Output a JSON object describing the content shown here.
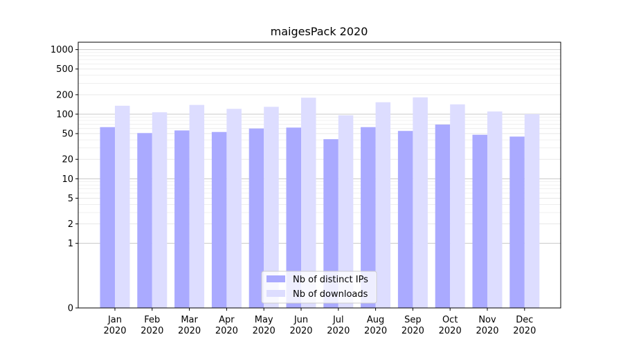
{
  "chart_data": {
    "type": "bar",
    "title": "maigesPack 2020",
    "xlabel": "",
    "ylabel": "",
    "y_scale": "symlog",
    "ylim": [
      0,
      1300
    ],
    "y_ticks": [
      0,
      1,
      2,
      5,
      10,
      20,
      50,
      100,
      200,
      500,
      1000
    ],
    "y_tick_labels": [
      "0",
      "1",
      "2",
      "5",
      "10",
      "20",
      "50",
      "100",
      "200",
      "500",
      "1000"
    ],
    "grid": "horizontal (major and minor)",
    "legend_position": "bottom-center",
    "categories": [
      "Jan\n2020",
      "Feb\n2020",
      "Mar\n2020",
      "Apr\n2020",
      "May\n2020",
      "Jun\n2020",
      "Jul\n2020",
      "Aug\n2020",
      "Sep\n2020",
      "Oct\n2020",
      "Nov\n2020",
      "Dec\n2020"
    ],
    "category_lines": [
      [
        "Jan",
        "2020"
      ],
      [
        "Feb",
        "2020"
      ],
      [
        "Mar",
        "2020"
      ],
      [
        "Apr",
        "2020"
      ],
      [
        "May",
        "2020"
      ],
      [
        "Jun",
        "2020"
      ],
      [
        "Jul",
        "2020"
      ],
      [
        "Aug",
        "2020"
      ],
      [
        "Sep",
        "2020"
      ],
      [
        "Oct",
        "2020"
      ],
      [
        "Nov",
        "2020"
      ],
      [
        "Dec",
        "2020"
      ]
    ],
    "series": [
      {
        "name": "Nb of distinct IPs",
        "color": "#aaaaff",
        "values": [
          63,
          51,
          56,
          53,
          60,
          62,
          41,
          63,
          55,
          69,
          48,
          45
        ]
      },
      {
        "name": "Nb of downloads",
        "color": "#ddddff",
        "values": [
          135,
          107,
          139,
          121,
          130,
          180,
          96,
          153,
          182,
          142,
          110,
          100
        ]
      }
    ]
  }
}
